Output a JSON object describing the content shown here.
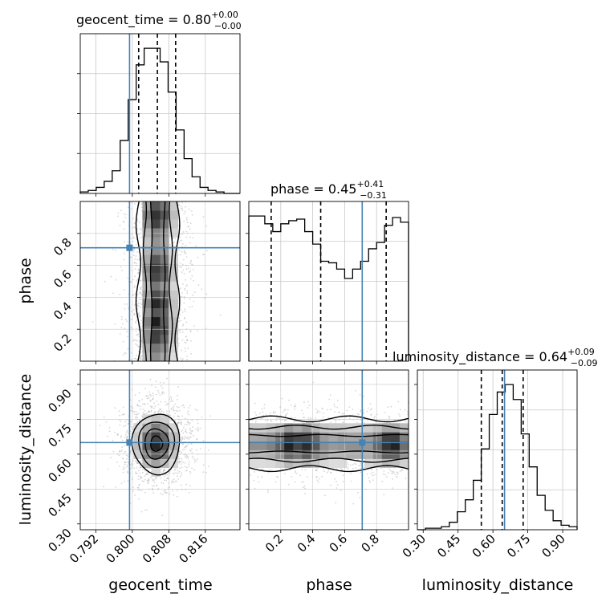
{
  "colors": {
    "truth": "#4682b4",
    "hist": "#000000",
    "grid": "#c8c8c8",
    "scatter": "#b4b4b4"
  },
  "titles": [
    {
      "name": "geocent_time = 0.80",
      "sup": "+0.00",
      "sub": "−0.00"
    },
    {
      "name": "phase = 0.45",
      "sup": "+0.41",
      "sub": "−0.31"
    },
    {
      "name": "luminosity_distance = 0.64",
      "sup": "+0.09",
      "sub": "−0.09"
    }
  ],
  "axis_labels": [
    "geocent_time",
    "phase",
    "luminosity_distance"
  ],
  "chart_data": {
    "type": "corner",
    "parameters": [
      "geocent_time",
      "phase",
      "luminosity_distance"
    ],
    "ranges": [
      [
        0.7886,
        0.8236
      ],
      [
        0.0,
        1.0
      ],
      [
        0.275,
        0.962
      ]
    ],
    "ticks": [
      {
        "values": [
          0.792,
          0.8,
          0.808,
          0.816
        ],
        "labels": [
          "0.792",
          "0.800",
          "0.808",
          "0.816"
        ]
      },
      {
        "values": [
          0.2,
          0.4,
          0.6,
          0.8
        ],
        "labels": [
          "0.2",
          "0.4",
          "0.6",
          "0.8"
        ]
      },
      {
        "values": [
          0.3,
          0.45,
          0.6,
          0.75,
          0.9
        ],
        "labels": [
          "0.30",
          "0.45",
          "0.60",
          "0.75",
          "0.90"
        ]
      }
    ],
    "truths": [
      0.7994,
      0.71,
      0.65
    ],
    "quantiles": [
      [
        0.8014,
        0.8055,
        0.8095
      ],
      [
        0.14,
        0.45,
        0.86
      ],
      [
        0.55,
        0.64,
        0.73
      ]
    ],
    "histograms": [
      {
        "bins": 20,
        "counts": [
          1,
          2,
          4,
          8,
          15,
          35,
          62,
          85,
          96,
          96,
          87,
          67,
          42,
          23,
          11,
          4,
          2,
          1,
          0,
          0
        ]
      },
      {
        "bins": 20,
        "counts": [
          93,
          93,
          88,
          83,
          88,
          90,
          91,
          83,
          75,
          64,
          63,
          59,
          53,
          59,
          64,
          72,
          76,
          87,
          92,
          89
        ]
      },
      {
        "bins": 20,
        "counts": [
          0,
          1,
          1,
          2,
          5,
          12,
          20,
          33,
          54,
          77,
          92,
          97,
          87,
          64,
          42,
          23,
          13,
          6,
          3,
          2
        ]
      }
    ],
    "joint": [
      {
        "x": "geocent_time",
        "y": "phase",
        "center": [
          0.8056,
          0.5
        ],
        "spread": [
          0.0022,
          0.0
        ],
        "style": "band",
        "contour_levels": 3,
        "peaks_y": [
          0.18,
          0.25,
          0.36,
          0.57,
          0.91
        ]
      },
      {
        "x": "geocent_time",
        "y": "luminosity_distance",
        "center": [
          0.8053,
          0.645
        ],
        "spread": [
          0.0026,
          0.065
        ],
        "style": "blob",
        "contour_levels": 4
      },
      {
        "x": "phase",
        "y": "luminosity_distance",
        "center": [
          0.5,
          0.645
        ],
        "spread": [
          0.0,
          0.055
        ],
        "style": "band",
        "contour_levels": 3,
        "peaks_x": [
          0.27,
          0.35,
          0.89
        ]
      }
    ]
  }
}
